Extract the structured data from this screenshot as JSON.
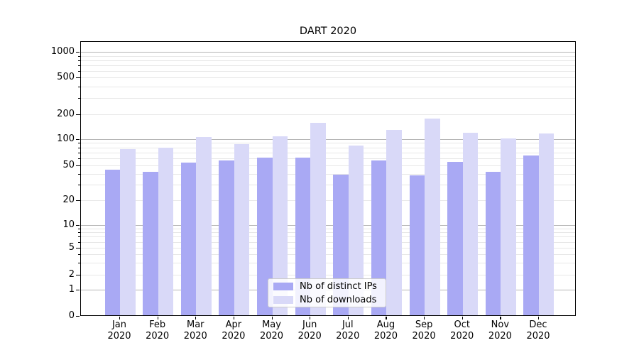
{
  "chart_data": {
    "type": "bar",
    "title": "DART 2020",
    "categories": [
      "Jan 2020",
      "Feb 2020",
      "Mar 2020",
      "Apr 2020",
      "May 2020",
      "Jun 2020",
      "Jul 2020",
      "Aug 2020",
      "Sep 2020",
      "Oct 2020",
      "Nov 2020",
      "Dec 2020"
    ],
    "series": [
      {
        "name": "Nb of distinct IPs",
        "color": "#a9a9f4",
        "values": [
          44,
          42,
          53,
          56,
          60,
          60,
          39,
          56,
          38,
          54,
          42,
          64
        ]
      },
      {
        "name": "Nb of downloads",
        "color": "#d9d9f8",
        "values": [
          76,
          78,
          105,
          87,
          107,
          155,
          84,
          127,
          174,
          118,
          101,
          115
        ]
      }
    ],
    "xlabel": "",
    "ylabel": "",
    "yscale": "asinh-log",
    "ylim": [
      0,
      1330
    ],
    "y_tick_values": [
      0,
      1,
      2,
      5,
      10,
      20,
      50,
      100,
      200,
      500,
      1000
    ],
    "y_tick_labels": [
      "0",
      "1",
      "2",
      "5",
      "10",
      "20",
      "50",
      "100",
      "200",
      "500",
      "1000"
    ],
    "grid": {
      "major_at": [
        1,
        10,
        100,
        1000
      ],
      "minor_subs": [
        2,
        3,
        4,
        5,
        6,
        7,
        8,
        9
      ],
      "minor_decades": [
        1,
        10,
        100
      ]
    },
    "legend": {
      "entries": [
        "Nb of distinct IPs",
        "Nb of downloads"
      ],
      "location": "lower-center"
    }
  },
  "colors": {
    "bar_distinct_ips": "#a9a9f4",
    "bar_downloads": "#d9d9f8",
    "grid_major": "#b5b5b5",
    "grid_minor": "#e7e7e7",
    "axis": "#000000",
    "legend_border": "#cccccc"
  }
}
